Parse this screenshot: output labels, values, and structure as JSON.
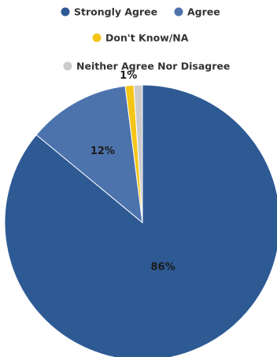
{
  "chart_data": {
    "type": "pie",
    "title": "",
    "legend_position": "top",
    "slices": [
      {
        "label": "Strongly Agree",
        "value": 86,
        "display": "86%",
        "color": "#2e5a94"
      },
      {
        "label": "Agree",
        "value": 12,
        "display": "12%",
        "color": "#4d73ad"
      },
      {
        "label": "Don't Know/NA",
        "value": 1,
        "display": "1%",
        "color": "#f5c518"
      },
      {
        "label": "Neither Agree Nor Disagree",
        "value": 1,
        "display": "",
        "color": "#cccccc"
      }
    ]
  }
}
